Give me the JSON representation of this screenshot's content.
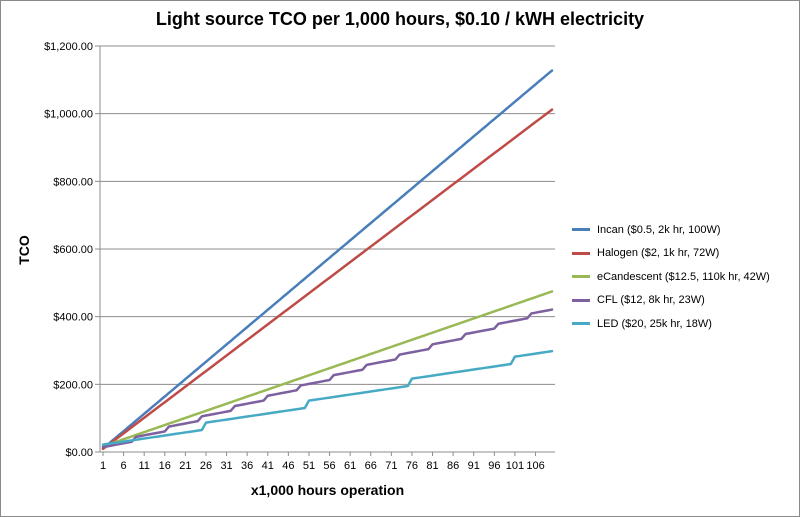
{
  "chart_data": {
    "type": "line",
    "title": "Light source TCO per 1,000 hours, $0.10 / kWH electricity",
    "xlabel": "x1,000 hours operation",
    "ylabel": "TCO",
    "x_range": [
      1,
      110
    ],
    "ylim": [
      0,
      1200
    ],
    "y_ticks": [
      "$0.00",
      "$200.00",
      "$400.00",
      "$600.00",
      "$800.00",
      "$1,000.00",
      "$1,200.00"
    ],
    "y_tick_values": [
      0,
      200,
      400,
      600,
      800,
      1000,
      1200
    ],
    "x_tick_labels": [
      "1",
      "6",
      "11",
      "16",
      "21",
      "26",
      "31",
      "36",
      "41",
      "46",
      "51",
      "56",
      "61",
      "66",
      "71",
      "76",
      "81",
      "86",
      "91",
      "96",
      "101",
      "106"
    ],
    "x_tick_values": [
      1,
      6,
      11,
      16,
      21,
      26,
      31,
      36,
      41,
      46,
      51,
      56,
      61,
      66,
      71,
      76,
      81,
      86,
      91,
      96,
      101,
      106
    ],
    "grid": "horizontal",
    "legend_position": "right",
    "series": [
      {
        "name": "Incan ($0.5, 2k hr, 100W)",
        "color": "#4a7ebb",
        "price": 0.5,
        "life_khr": 2,
        "watts": 100
      },
      {
        "name": "Halogen ($2, 1k hr, 72W)",
        "color": "#be4b48",
        "price": 2,
        "life_khr": 1,
        "watts": 72
      },
      {
        "name": "eCandescent ($12.5, 110k hr, 42W)",
        "color": "#98b954",
        "price": 12.5,
        "life_khr": 110,
        "watts": 42
      },
      {
        "name": "CFL ($12, 8k hr, 23W)",
        "color": "#7d60a0",
        "price": 12,
        "life_khr": 8,
        "watts": 23
      },
      {
        "name": "LED ($20, 25k hr, 18W)",
        "color": "#46aac5",
        "price": 20,
        "life_khr": 25,
        "watts": 18
      }
    ],
    "electricity_rate": 0.1
  }
}
